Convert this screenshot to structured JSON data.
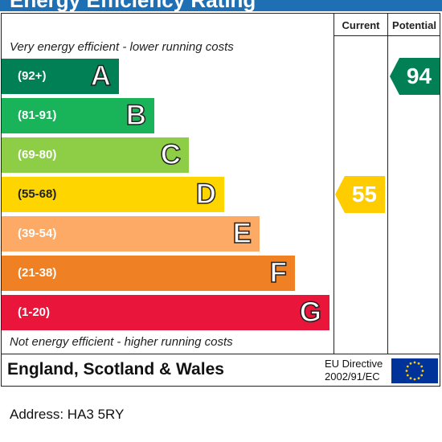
{
  "title": "Energy Efficiency Rating",
  "columns": {
    "current": "Current",
    "potential": "Potential"
  },
  "top_caption": "Very energy efficient - lower running costs",
  "bottom_caption": "Not energy efficient - higher running costs",
  "bands": [
    {
      "letter": "A",
      "range": "(92+)",
      "color": "#008054"
    },
    {
      "letter": "B",
      "range": "(81-91)",
      "color": "#19b459"
    },
    {
      "letter": "C",
      "range": "(69-80)",
      "color": "#8dce46"
    },
    {
      "letter": "D",
      "range": "(55-68)",
      "color": "#ffd500"
    },
    {
      "letter": "E",
      "range": "(39-54)",
      "color": "#fcaa65"
    },
    {
      "letter": "F",
      "range": "(21-38)",
      "color": "#ef8023"
    },
    {
      "letter": "G",
      "range": "(1-20)",
      "color": "#e9153b"
    }
  ],
  "current_rating": {
    "value": "55",
    "band": "D",
    "color": "#ffcc00"
  },
  "potential_rating": {
    "value": "94",
    "band": "A",
    "color": "#008054"
  },
  "footer": {
    "region": "England, Scotland & Wales",
    "directive_line1": "EU Directive",
    "directive_line2": "2002/91/EC"
  },
  "address": "Address: HA3 5RY",
  "chart_data": {
    "type": "bar",
    "categories": [
      "A",
      "B",
      "C",
      "D",
      "E",
      "F",
      "G"
    ],
    "ranges": [
      "(92+)",
      "(81-91)",
      "(69-80)",
      "(55-68)",
      "(39-54)",
      "(21-38)",
      "(1-20)"
    ],
    "current": 55,
    "potential": 94
  }
}
